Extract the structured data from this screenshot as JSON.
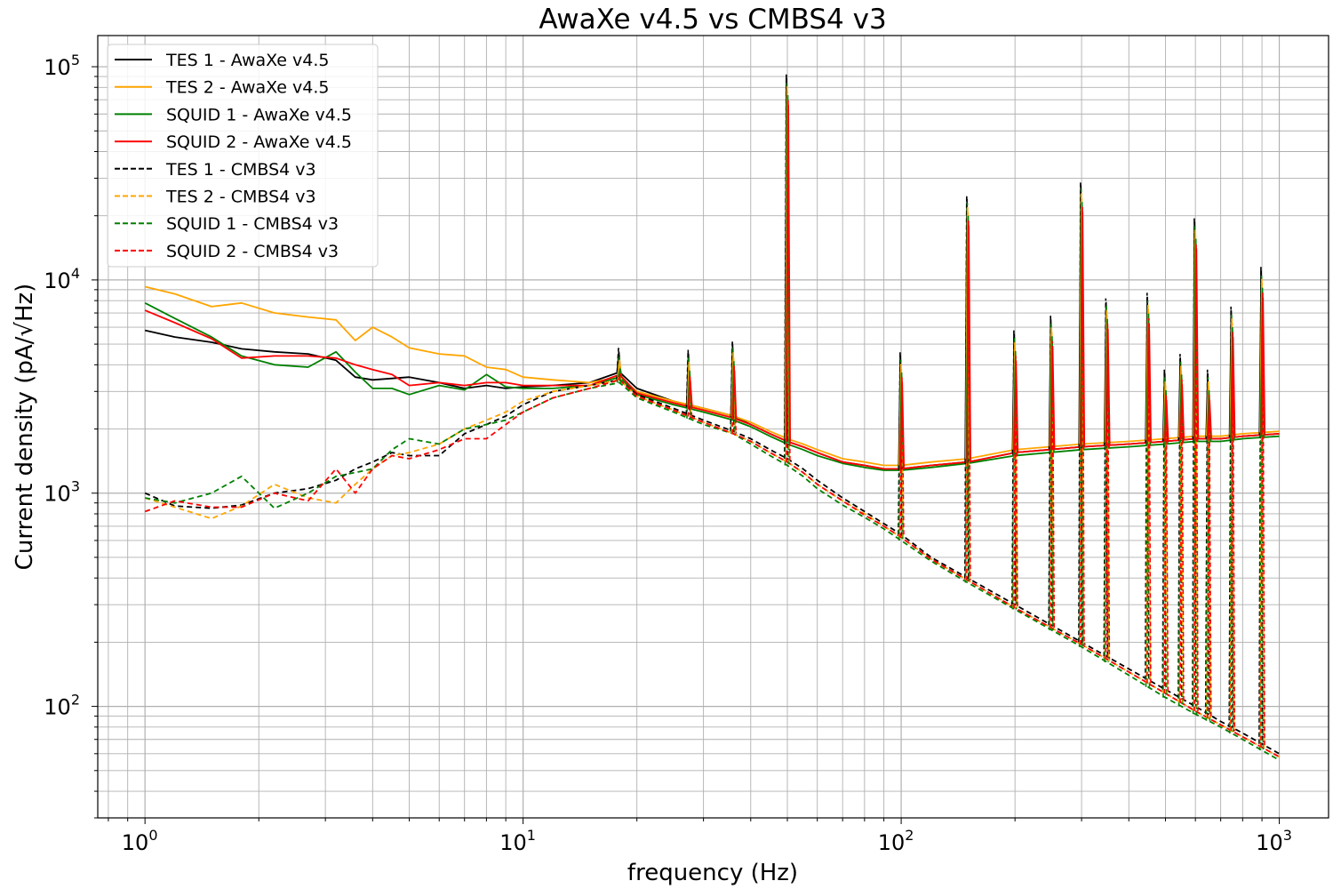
{
  "chart_data": {
    "type": "line",
    "title": "AwaXe v4.5 vs CMBS4 v3",
    "xlabel": "frequency (Hz)",
    "ylabel": "Current density (pA/√Hz)",
    "xscale": "log",
    "yscale": "log",
    "xlim": [
      0.75,
      1350
    ],
    "ylim": [
      30,
      140000
    ],
    "grid": true,
    "grid_minor": true,
    "legend_position": "top-left",
    "x_ticks": [
      {
        "value": 1,
        "base": "10",
        "exp": "0"
      },
      {
        "value": 10,
        "base": "10",
        "exp": "1"
      },
      {
        "value": 100,
        "base": "10",
        "exp": "2"
      },
      {
        "value": 1000,
        "base": "10",
        "exp": "3"
      }
    ],
    "y_ticks": [
      {
        "value": 100,
        "base": "10",
        "exp": "2"
      },
      {
        "value": 1000,
        "base": "10",
        "exp": "3"
      },
      {
        "value": 10000,
        "base": "10",
        "exp": "4"
      },
      {
        "value": 100000,
        "base": "10",
        "exp": "5"
      }
    ],
    "series": [
      {
        "name": "TES 1 - AwaXe v4.5",
        "color": "#000000",
        "style": "solid",
        "x": [
          1,
          1.2,
          1.5,
          1.8,
          2.2,
          2.7,
          3.2,
          3.6,
          4,
          4.5,
          5,
          6,
          7,
          8,
          9,
          10,
          12,
          15,
          18,
          20,
          25,
          30,
          36,
          40,
          45,
          50,
          55,
          60,
          70,
          80,
          90,
          100,
          120,
          150,
          200,
          300,
          400,
          500,
          600,
          700,
          800,
          1000
        ],
        "y": [
          5800,
          5400,
          5100,
          4750,
          4600,
          4500,
          4200,
          3500,
          3400,
          3450,
          3500,
          3300,
          3100,
          3200,
          3100,
          3150,
          3200,
          3300,
          3700,
          3100,
          2700,
          2500,
          2300,
          2100,
          1900,
          1750,
          1650,
          1550,
          1400,
          1350,
          1300,
          1300,
          1350,
          1400,
          1550,
          1650,
          1700,
          1750,
          1800,
          1800,
          1850,
          1900
        ]
      },
      {
        "name": "TES 2 - AwaXe v4.5",
        "color": "#FFA500",
        "style": "solid",
        "x": [
          1,
          1.2,
          1.5,
          1.8,
          2.2,
          2.7,
          3.2,
          3.6,
          4,
          4.5,
          5,
          6,
          7,
          8,
          9,
          10,
          12,
          15,
          18,
          20,
          25,
          30,
          36,
          40,
          45,
          50,
          55,
          60,
          70,
          80,
          90,
          100,
          120,
          150,
          200,
          300,
          400,
          500,
          600,
          700,
          800,
          1000
        ],
        "y": [
          9300,
          8600,
          7500,
          7800,
          7000,
          6700,
          6500,
          5200,
          6000,
          5400,
          4800,
          4500,
          4400,
          3900,
          3800,
          3500,
          3400,
          3300,
          3500,
          3000,
          2700,
          2500,
          2300,
          2150,
          1950,
          1800,
          1700,
          1600,
          1450,
          1400,
          1350,
          1350,
          1400,
          1450,
          1600,
          1700,
          1750,
          1800,
          1850,
          1850,
          1900,
          1950
        ]
      },
      {
        "name": "SQUID 1 - AwaXe v4.5",
        "color": "#008000",
        "style": "solid",
        "x": [
          1,
          1.2,
          1.5,
          1.8,
          2.2,
          2.7,
          3.2,
          3.6,
          4,
          4.5,
          5,
          6,
          7,
          8,
          9,
          10,
          12,
          15,
          18,
          20,
          25,
          30,
          36,
          40,
          45,
          50,
          55,
          60,
          70,
          80,
          90,
          100,
          120,
          150,
          200,
          300,
          400,
          500,
          600,
          700,
          800,
          1000
        ],
        "y": [
          7800,
          6600,
          5400,
          4400,
          4000,
          3900,
          4600,
          3700,
          3100,
          3100,
          2900,
          3200,
          3050,
          3600,
          3150,
          3100,
          3100,
          3200,
          3500,
          2900,
          2600,
          2400,
          2200,
          2050,
          1850,
          1700,
          1600,
          1500,
          1380,
          1320,
          1280,
          1280,
          1320,
          1380,
          1500,
          1600,
          1650,
          1700,
          1750,
          1750,
          1800,
          1850
        ]
      },
      {
        "name": "SQUID 2 - AwaXe v4.5",
        "color": "#FF0000",
        "style": "solid",
        "x": [
          1,
          1.2,
          1.5,
          1.8,
          2.2,
          2.7,
          3.2,
          3.6,
          4,
          4.5,
          5,
          6,
          7,
          8,
          9,
          10,
          12,
          15,
          18,
          20,
          25,
          30,
          36,
          40,
          45,
          50,
          55,
          60,
          70,
          80,
          90,
          100,
          120,
          150,
          200,
          300,
          400,
          500,
          600,
          700,
          800,
          1000
        ],
        "y": [
          7200,
          6300,
          5300,
          4300,
          4400,
          4400,
          4300,
          4000,
          3800,
          3600,
          3200,
          3300,
          3200,
          3300,
          3300,
          3200,
          3200,
          3200,
          3600,
          2950,
          2650,
          2450,
          2250,
          2100,
          1900,
          1750,
          1650,
          1550,
          1400,
          1350,
          1300,
          1300,
          1350,
          1400,
          1550,
          1650,
          1700,
          1750,
          1800,
          1800,
          1850,
          1900
        ]
      },
      {
        "name": "TES 1 - CMBS4 v3",
        "color": "#000000",
        "style": "dashed",
        "x": [
          1,
          1.2,
          1.5,
          1.8,
          2.2,
          2.7,
          3.2,
          3.6,
          4,
          4.5,
          5,
          6,
          7,
          8,
          9,
          10,
          12,
          15,
          18,
          20,
          25,
          30,
          36,
          40,
          45,
          50,
          55,
          60,
          70,
          80,
          90,
          100,
          120,
          150,
          200,
          300,
          400,
          500,
          600,
          700,
          800,
          1000
        ],
        "y": [
          1000,
          870,
          850,
          880,
          1000,
          1050,
          1150,
          1300,
          1400,
          1550,
          1500,
          1500,
          1900,
          2100,
          2300,
          2600,
          3000,
          3200,
          3400,
          2900,
          2500,
          2200,
          1950,
          1800,
          1600,
          1450,
          1300,
          1150,
          950,
          820,
          720,
          640,
          500,
          400,
          300,
          200,
          150,
          120,
          100,
          85,
          75,
          60
        ]
      },
      {
        "name": "TES 2 - CMBS4 v3",
        "color": "#FFA500",
        "style": "dashed",
        "x": [
          1,
          1.2,
          1.5,
          1.8,
          2.2,
          2.7,
          3.2,
          3.6,
          4,
          4.5,
          5,
          6,
          7,
          8,
          9,
          10,
          12,
          15,
          18,
          20,
          25,
          30,
          36,
          40,
          45,
          50,
          55,
          60,
          70,
          80,
          90,
          100,
          120,
          150,
          200,
          300,
          400,
          500,
          600,
          700,
          800,
          1000
        ],
        "y": [
          950,
          860,
          760,
          870,
          1100,
          950,
          900,
          1100,
          1300,
          1500,
          1550,
          1700,
          2000,
          2200,
          2400,
          2700,
          3000,
          3200,
          3400,
          2850,
          2450,
          2150,
          1900,
          1750,
          1550,
          1400,
          1250,
          1100,
          920,
          800,
          700,
          620,
          490,
          390,
          290,
          195,
          145,
          115,
          95,
          82,
          72,
          58
        ]
      },
      {
        "name": "SQUID 1 - CMBS4 v3",
        "color": "#008000",
        "style": "dashed",
        "x": [
          1,
          1.2,
          1.5,
          1.8,
          2.2,
          2.7,
          3.2,
          3.6,
          4,
          4.5,
          5,
          6,
          7,
          8,
          9,
          10,
          12,
          15,
          18,
          20,
          25,
          30,
          36,
          40,
          45,
          50,
          55,
          60,
          70,
          80,
          90,
          100,
          120,
          150,
          200,
          300,
          400,
          500,
          600,
          700,
          800,
          1000
        ],
        "y": [
          950,
          900,
          1000,
          1200,
          850,
          1000,
          1200,
          1250,
          1300,
          1600,
          1800,
          1700,
          2000,
          2100,
          2200,
          2400,
          2800,
          3100,
          3300,
          2800,
          2400,
          2100,
          1900,
          1700,
          1500,
          1350,
          1200,
          1050,
          880,
          770,
          680,
          600,
          480,
          380,
          285,
          190,
          140,
          110,
          92,
          80,
          70,
          56
        ]
      },
      {
        "name": "SQUID 2 - CMBS4 v3",
        "color": "#FF0000",
        "style": "dashed",
        "x": [
          1,
          1.2,
          1.5,
          1.8,
          2.2,
          2.7,
          3.2,
          3.6,
          4,
          4.5,
          5,
          6,
          7,
          8,
          9,
          10,
          12,
          15,
          18,
          20,
          25,
          30,
          36,
          40,
          45,
          50,
          55,
          60,
          70,
          80,
          90,
          100,
          120,
          150,
          200,
          300,
          400,
          500,
          600,
          700,
          800,
          1000
        ],
        "y": [
          820,
          920,
          860,
          860,
          1000,
          920,
          1300,
          1000,
          1300,
          1500,
          1450,
          1600,
          1800,
          1800,
          2100,
          2400,
          2800,
          3100,
          3400,
          2850,
          2450,
          2150,
          1900,
          1750,
          1550,
          1400,
          1250,
          1100,
          920,
          790,
          700,
          620,
          490,
          390,
          290,
          195,
          145,
          115,
          95,
          82,
          72,
          58
        ]
      }
    ],
    "peaks": [
      {
        "x": 18,
        "y": 4800
      },
      {
        "x": 27.5,
        "y": 4700
      },
      {
        "x": 36,
        "y": 5200
      },
      {
        "x": 50,
        "y": 92000
      },
      {
        "x": 100,
        "y": 4600
      },
      {
        "x": 150,
        "y": 25000
      },
      {
        "x": 200,
        "y": 5800
      },
      {
        "x": 250,
        "y": 6800
      },
      {
        "x": 300,
        "y": 29000
      },
      {
        "x": 350,
        "y": 8200
      },
      {
        "x": 450,
        "y": 8700
      },
      {
        "x": 500,
        "y": 3800
      },
      {
        "x": 550,
        "y": 4500
      },
      {
        "x": 600,
        "y": 19500
      },
      {
        "x": 650,
        "y": 3800
      },
      {
        "x": 750,
        "y": 7500
      },
      {
        "x": 900,
        "y": 11500
      }
    ]
  }
}
